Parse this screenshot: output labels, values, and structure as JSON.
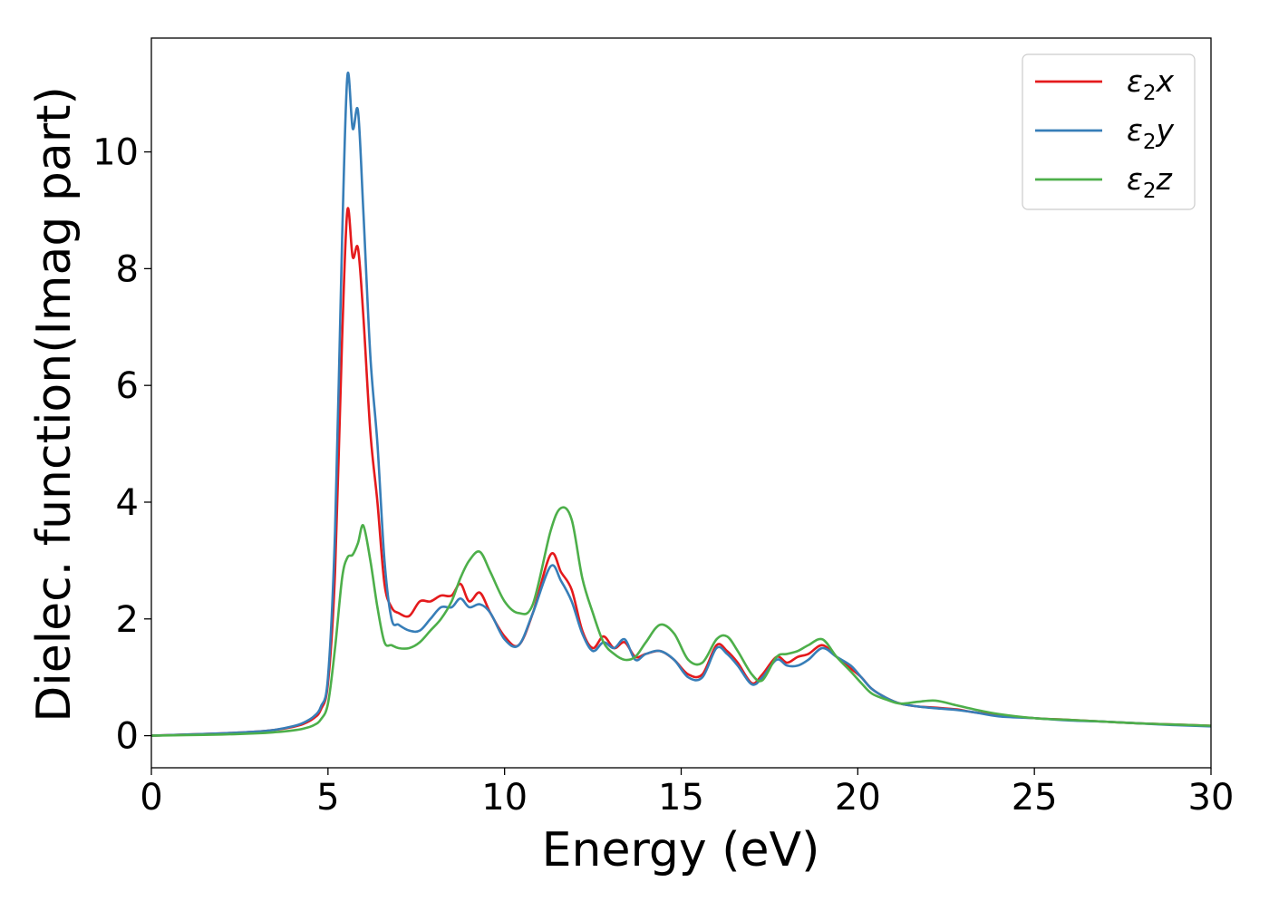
{
  "chart_data": {
    "type": "line",
    "xlabel": "Energy (eV)",
    "ylabel": "Dielec. function(Imag part)",
    "xlim": [
      0,
      30
    ],
    "ylim": [
      -0.55,
      11.95
    ],
    "xticks": [
      0,
      5,
      10,
      15,
      20,
      25,
      30
    ],
    "yticks": [
      0,
      2,
      4,
      6,
      8,
      10
    ],
    "grid": false,
    "legend_position": "top-right",
    "series": [
      {
        "name": "ε₂x",
        "legend_base": "ε",
        "legend_sub": "2",
        "legend_suffix": "x",
        "color": "#e41a1c",
        "x": [
          0,
          1,
          2,
          3,
          3.5,
          4,
          4.3,
          4.6,
          4.8,
          5.0,
          5.2,
          5.4,
          5.55,
          5.7,
          5.85,
          6.0,
          6.2,
          6.4,
          6.6,
          6.8,
          7.0,
          7.3,
          7.6,
          7.9,
          8.2,
          8.5,
          8.75,
          9.0,
          9.3,
          9.6,
          10.0,
          10.4,
          10.8,
          11.3,
          11.6,
          11.9,
          12.2,
          12.5,
          12.8,
          13.1,
          13.4,
          13.7,
          14.0,
          14.4,
          14.8,
          15.2,
          15.6,
          16.0,
          16.3,
          16.6,
          17.0,
          17.3,
          17.7,
          18.0,
          18.3,
          18.6,
          19.0,
          19.4,
          19.8,
          20.1,
          20.4,
          20.8,
          21.2,
          21.7,
          22.2,
          22.8,
          23.3,
          24,
          25,
          26,
          27,
          28,
          29,
          30
        ],
        "y": [
          0.0,
          0.02,
          0.04,
          0.07,
          0.1,
          0.15,
          0.2,
          0.3,
          0.45,
          0.9,
          2.8,
          6.8,
          9.0,
          8.2,
          8.35,
          7.2,
          5.2,
          4.0,
          2.6,
          2.2,
          2.1,
          2.05,
          2.3,
          2.3,
          2.4,
          2.4,
          2.6,
          2.3,
          2.45,
          2.1,
          1.7,
          1.55,
          2.1,
          3.1,
          2.8,
          2.5,
          1.8,
          1.5,
          1.7,
          1.5,
          1.6,
          1.35,
          1.4,
          1.45,
          1.3,
          1.05,
          1.05,
          1.55,
          1.45,
          1.25,
          0.9,
          1.05,
          1.35,
          1.25,
          1.35,
          1.4,
          1.55,
          1.35,
          1.15,
          1.0,
          0.8,
          0.65,
          0.55,
          0.5,
          0.48,
          0.45,
          0.4,
          0.35,
          0.3,
          0.27,
          0.24,
          0.21,
          0.19,
          0.17
        ]
      },
      {
        "name": "ε₂y",
        "legend_base": "ε",
        "legend_sub": "2",
        "legend_suffix": "y",
        "color": "#377eb8",
        "x": [
          0,
          1,
          2,
          3,
          3.5,
          4,
          4.3,
          4.6,
          4.8,
          5.0,
          5.2,
          5.4,
          5.55,
          5.7,
          5.85,
          6.0,
          6.2,
          6.4,
          6.6,
          6.8,
          7.0,
          7.3,
          7.6,
          7.9,
          8.2,
          8.5,
          8.75,
          9.0,
          9.3,
          9.6,
          10.0,
          10.4,
          10.8,
          11.3,
          11.6,
          11.9,
          12.2,
          12.5,
          12.8,
          13.1,
          13.4,
          13.7,
          14.0,
          14.4,
          14.8,
          15.2,
          15.6,
          16.0,
          16.3,
          16.6,
          17.0,
          17.3,
          17.7,
          18.0,
          18.3,
          18.6,
          19.0,
          19.4,
          19.8,
          20.1,
          20.4,
          20.8,
          21.2,
          21.7,
          22.2,
          22.8,
          23.3,
          24,
          25,
          26,
          27,
          28,
          29,
          30
        ],
        "y": [
          0.0,
          0.02,
          0.04,
          0.07,
          0.1,
          0.16,
          0.22,
          0.33,
          0.5,
          1.0,
          3.5,
          8.5,
          11.3,
          10.4,
          10.7,
          9.0,
          6.5,
          5.0,
          3.0,
          2.0,
          1.9,
          1.8,
          1.8,
          2.0,
          2.2,
          2.2,
          2.35,
          2.2,
          2.25,
          2.1,
          1.65,
          1.55,
          2.1,
          2.9,
          2.65,
          2.3,
          1.75,
          1.45,
          1.6,
          1.5,
          1.65,
          1.3,
          1.4,
          1.45,
          1.3,
          1.0,
          1.0,
          1.5,
          1.4,
          1.2,
          0.88,
          1.0,
          1.3,
          1.2,
          1.2,
          1.3,
          1.5,
          1.35,
          1.2,
          1.0,
          0.8,
          0.65,
          0.55,
          0.5,
          0.47,
          0.44,
          0.4,
          0.33,
          0.3,
          0.26,
          0.24,
          0.21,
          0.18,
          0.16
        ]
      },
      {
        "name": "ε₂z",
        "legend_base": "ε",
        "legend_sub": "2",
        "legend_suffix": "z",
        "color": "#4daf4a",
        "x": [
          0,
          1,
          2,
          3,
          3.5,
          4,
          4.3,
          4.6,
          4.8,
          5.0,
          5.2,
          5.4,
          5.55,
          5.7,
          5.85,
          6.0,
          6.2,
          6.4,
          6.6,
          6.8,
          7.0,
          7.3,
          7.6,
          7.9,
          8.2,
          8.5,
          8.75,
          9.0,
          9.3,
          9.6,
          10.0,
          10.4,
          10.8,
          11.3,
          11.6,
          11.9,
          12.2,
          12.5,
          12.8,
          13.1,
          13.4,
          13.7,
          14.0,
          14.4,
          14.8,
          15.2,
          15.6,
          16.0,
          16.3,
          16.6,
          17.0,
          17.3,
          17.7,
          18.0,
          18.3,
          18.6,
          19.0,
          19.4,
          19.8,
          20.1,
          20.4,
          20.8,
          21.2,
          21.7,
          22.2,
          22.8,
          23.3,
          24,
          25,
          26,
          27,
          28,
          29,
          30
        ],
        "y": [
          0.0,
          0.01,
          0.02,
          0.04,
          0.06,
          0.09,
          0.12,
          0.18,
          0.28,
          0.55,
          1.5,
          2.7,
          3.05,
          3.1,
          3.3,
          3.6,
          3.0,
          2.2,
          1.6,
          1.55,
          1.5,
          1.5,
          1.6,
          1.8,
          2.0,
          2.3,
          2.7,
          3.0,
          3.15,
          2.8,
          2.3,
          2.1,
          2.25,
          3.5,
          3.9,
          3.7,
          2.7,
          2.1,
          1.6,
          1.4,
          1.3,
          1.35,
          1.6,
          1.9,
          1.75,
          1.3,
          1.25,
          1.65,
          1.7,
          1.45,
          1.05,
          0.95,
          1.35,
          1.4,
          1.45,
          1.55,
          1.65,
          1.35,
          1.1,
          0.9,
          0.72,
          0.62,
          0.55,
          0.58,
          0.6,
          0.52,
          0.45,
          0.37,
          0.3,
          0.27,
          0.24,
          0.21,
          0.19,
          0.17
        ]
      }
    ]
  }
}
